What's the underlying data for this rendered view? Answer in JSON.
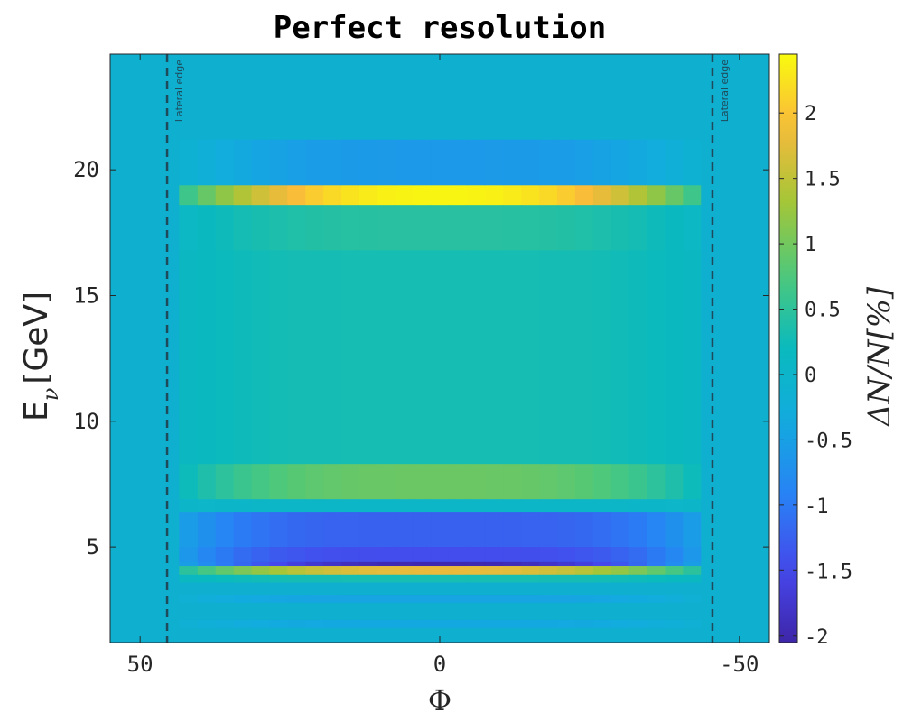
{
  "chart_data": {
    "type": "heatmap",
    "title": "Perfect resolution",
    "xlabel": "Φ",
    "ylabel": {
      "main": "E",
      "subscript": "ν",
      "unit": "[GeV]"
    },
    "colorbar_label": "ΔN/N[%]",
    "xlim": [
      55,
      -55
    ],
    "ylim": [
      1.2,
      24.6
    ],
    "x_ticks": [
      {
        "value": 50,
        "label": "50"
      },
      {
        "value": 0,
        "label": "0"
      },
      {
        "value": -50,
        "label": "-50"
      }
    ],
    "y_ticks": [
      {
        "value": 5,
        "label": "5"
      },
      {
        "value": 10,
        "label": "10"
      },
      {
        "value": 15,
        "label": "15"
      },
      {
        "value": 20,
        "label": "20"
      }
    ],
    "color_range": [
      -2.05,
      2.45
    ],
    "colorbar_ticks": [
      {
        "value": 2,
        "label": "2"
      },
      {
        "value": 1.5,
        "label": "1.5"
      },
      {
        "value": 1,
        "label": "1"
      },
      {
        "value": 0.5,
        "label": "0.5"
      },
      {
        "value": 0,
        "label": "0"
      },
      {
        "value": -0.5,
        "label": "-0.5"
      },
      {
        "value": -1,
        "label": "-1"
      },
      {
        "value": -1.5,
        "label": "-1.5"
      },
      {
        "value": -2,
        "label": "-2"
      }
    ],
    "colormap": "parula",
    "background_value": 0.0,
    "lateral_edges": [
      {
        "x": 45.5,
        "label": "Lateral edge"
      },
      {
        "x": -45.5,
        "label": "Lateral edge"
      }
    ],
    "signal_region": {
      "x": [
        -43.5,
        43.5
      ],
      "y": [
        1.5,
        19.5
      ]
    },
    "energy_bands": [
      {
        "y_min": 18.6,
        "y_max": 19.4,
        "peak": 2.4,
        "profile": "narrow"
      },
      {
        "y_min": 16.8,
        "y_max": 18.6,
        "peak": 0.45,
        "profile": "wide"
      },
      {
        "y_min": 8.3,
        "y_max": 16.8,
        "peak": 0.3,
        "profile": "flat"
      },
      {
        "y_min": 6.9,
        "y_max": 8.3,
        "peak": 0.95,
        "profile": "wide"
      },
      {
        "y_min": 6.4,
        "y_max": 6.9,
        "peak": 0.05,
        "profile": "flat"
      },
      {
        "y_min": 5.0,
        "y_max": 6.4,
        "peak": -1.25,
        "profile": "flat"
      },
      {
        "y_min": 4.4,
        "y_max": 5.0,
        "peak": -1.45,
        "profile": "flat"
      },
      {
        "y_min": 4.25,
        "y_max": 4.4,
        "peak": -2.0,
        "profile": "narrow"
      },
      {
        "y_min": 3.9,
        "y_max": 4.25,
        "peak": 1.8,
        "profile": "narrow"
      },
      {
        "y_min": 3.6,
        "y_max": 3.9,
        "peak": 0.3,
        "profile": "flat"
      },
      {
        "y_min": 2.8,
        "y_max": 3.1,
        "peak": -0.45,
        "profile": "flat"
      },
      {
        "y_min": 1.8,
        "y_max": 2.1,
        "peak": -0.4,
        "profile": "flat"
      }
    ],
    "cold_halo": {
      "y_min": 19.4,
      "y_max": 21.2,
      "peak": -0.6
    }
  }
}
